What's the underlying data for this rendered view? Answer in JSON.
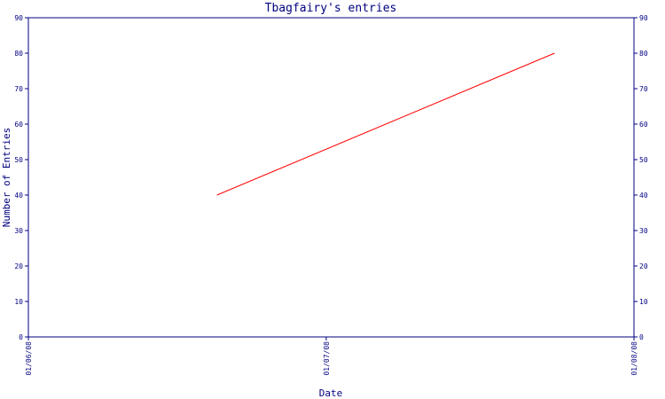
{
  "chart_data": {
    "type": "line",
    "title": "Tbagfairy's entries",
    "xlabel": "Date",
    "ylabel": "Number of Entries",
    "x_tick_labels": [
      "01/06/08",
      "01/07/08",
      "01/08/08"
    ],
    "x_ticks": [
      "2008-06-01",
      "2008-07-01",
      "2008-08-01"
    ],
    "xlim": [
      "2008-06-01",
      "2008-08-01"
    ],
    "y_ticks": [
      0,
      10,
      20,
      30,
      40,
      50,
      60,
      70,
      80,
      90
    ],
    "ylim": [
      0,
      90
    ],
    "right_axis_ticks": true,
    "grid": false,
    "series": [
      {
        "color": "#ff0000",
        "x": [
          "2008-06-20",
          "2008-07-24"
        ],
        "y": [
          40,
          80
        ]
      }
    ]
  }
}
